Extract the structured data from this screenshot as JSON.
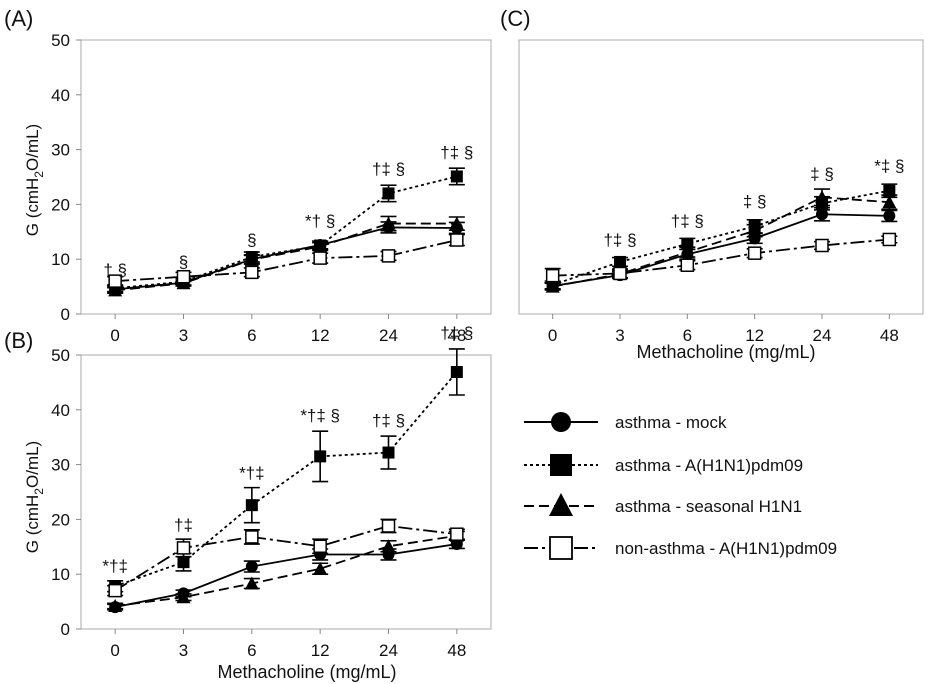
{
  "panels": [
    {
      "id": "A",
      "panel_label": "(A)",
      "ylabel_main": "G (cmH",
      "ylabel_sub": "2",
      "ylabel_tail": "O/mL)",
      "xlabel": "",
      "yticks": [
        "0",
        "10",
        "20",
        "30",
        "40",
        "50"
      ],
      "xticks": [
        "0",
        "3",
        "6",
        "12",
        "24",
        "48"
      ],
      "annotations": [
        {
          "text": "† §",
          "x": "0",
          "y": 7
        },
        {
          "text": "§",
          "x": "3",
          "y": 8.5
        },
        {
          "text": "§",
          "x": "6",
          "y": 12.5
        },
        {
          "text": "*† §",
          "x": "12",
          "y": 16
        },
        {
          "text": "†‡ §",
          "x": "24",
          "y": 25.5
        },
        {
          "text": "†‡ §",
          "x": "48",
          "y": 28.5
        }
      ]
    },
    {
      "id": "B",
      "panel_label": "(B)",
      "ylabel_main": "G (cmH",
      "ylabel_sub": "2",
      "ylabel_tail": "O/mL)",
      "xlabel": "Methacholine (mg/mL)",
      "yticks": [
        "0",
        "10",
        "20",
        "30",
        "40",
        "50"
      ],
      "xticks": [
        "0",
        "3",
        "6",
        "12",
        "24",
        "48"
      ],
      "annotations": [
        {
          "text": "*†‡",
          "x": "0",
          "y": 10.5
        },
        {
          "text": "†‡",
          "x": "3",
          "y": 18
        },
        {
          "text": "*†‡",
          "x": "6",
          "y": 27.5
        },
        {
          "text": "*†‡ §",
          "x": "12",
          "y": 38
        },
        {
          "text": "†‡ §",
          "x": "24",
          "y": 37
        },
        {
          "text": "†‡ §",
          "x": "48",
          "y": 53
        }
      ]
    },
    {
      "id": "C",
      "panel_label": "(C)",
      "ylabel_main": "",
      "ylabel_sub": "",
      "ylabel_tail": "",
      "xlabel": "Methacholine (mg/mL)",
      "yticks": [],
      "xticks": [
        "0",
        "3",
        "6",
        "12",
        "24",
        "48"
      ],
      "annotations": [
        {
          "text": "†‡ §",
          "x": "3",
          "y": 12.5
        },
        {
          "text": "†‡ §",
          "x": "6",
          "y": 16
        },
        {
          "text": "‡ §",
          "x": "12",
          "y": 19.5
        },
        {
          "text": "‡ §",
          "x": "24",
          "y": 24.5
        },
        {
          "text": "*‡ §",
          "x": "48",
          "y": 26
        }
      ]
    }
  ],
  "legend": [
    {
      "key": "asthma_mock",
      "label": "asthma - mock",
      "marker": "circle"
    },
    {
      "key": "asthma_pdm09",
      "label": "asthma - A(H1N1)pdm09",
      "marker": "square-filled"
    },
    {
      "key": "asthma_seasonal",
      "label": "asthma -  seasonal H1N1",
      "marker": "triangle"
    },
    {
      "key": "nonasthma_pdm09",
      "label": "non-asthma - A(H1N1)pdm09",
      "marker": "square-open"
    }
  ],
  "chart_data": [
    {
      "type": "line",
      "panel": "(A)",
      "categories": [
        "0",
        "3",
        "6",
        "12",
        "24",
        "48"
      ],
      "ylabel": "G (cmH2O/mL)",
      "xlabel": "",
      "ylim": [
        0,
        50
      ],
      "series": [
        {
          "name": "asthma - mock",
          "values": [
            4.5,
            5.7,
            10.0,
            12.6,
            15.8,
            15.7
          ],
          "err": [
            0.5,
            0.5,
            0.8,
            0.7,
            1.0,
            1.0
          ]
        },
        {
          "name": "asthma - A(H1N1)pdm09",
          "values": [
            4.7,
            5.9,
            10.4,
            12.5,
            22.0,
            25.1
          ],
          "err": [
            0.6,
            0.6,
            0.9,
            0.8,
            1.5,
            1.5
          ]
        },
        {
          "name": "asthma -  seasonal H1N1",
          "values": [
            4.3,
            5.6,
            9.9,
            12.3,
            16.5,
            16.5
          ],
          "err": [
            0.5,
            0.5,
            0.8,
            0.7,
            1.3,
            1.2
          ]
        },
        {
          "name": "non-asthma - A(H1N1)pdm09",
          "values": [
            6.0,
            6.8,
            7.6,
            10.2,
            10.6,
            13.5
          ],
          "err": [
            0.8,
            0.8,
            0.8,
            0.9,
            0.8,
            1.0
          ]
        }
      ]
    },
    {
      "type": "line",
      "panel": "(B)",
      "categories": [
        "0",
        "3",
        "6",
        "12",
        "24",
        "48"
      ],
      "ylabel": "G (cmH2O/mL)",
      "xlabel": "Methacholine (mg/mL)",
      "ylim": [
        0,
        50
      ],
      "series": [
        {
          "name": "asthma - mock",
          "values": [
            4.0,
            6.5,
            11.4,
            13.6,
            13.6,
            15.5
          ],
          "err": [
            0.5,
            0.6,
            1.0,
            1.0,
            1.0,
            0.8
          ]
        },
        {
          "name": "asthma - A(H1N1)pdm09",
          "values": [
            7.8,
            12.2,
            22.6,
            31.5,
            32.2,
            46.9
          ],
          "err": [
            1.0,
            1.6,
            3.2,
            4.6,
            3.0,
            4.2
          ]
        },
        {
          "name": "asthma -  seasonal H1N1",
          "values": [
            4.2,
            5.8,
            8.3,
            11.0,
            15.1,
            17.0
          ],
          "err": [
            0.5,
            0.6,
            0.9,
            1.0,
            1.0,
            0.8
          ]
        },
        {
          "name": "non-asthma - A(H1N1)pdm09",
          "values": [
            7.0,
            14.8,
            16.8,
            15.1,
            18.8,
            17.3
          ],
          "err": [
            0.9,
            1.6,
            1.3,
            1.3,
            1.2,
            0.9
          ]
        }
      ]
    },
    {
      "type": "line",
      "panel": "(C)",
      "categories": [
        "0",
        "3",
        "6",
        "12",
        "24",
        "48"
      ],
      "ylabel": "",
      "xlabel": "Methacholine (mg/mL)",
      "ylim": [
        0,
        50
      ],
      "series": [
        {
          "name": "asthma - mock",
          "values": [
            5.1,
            7.1,
            10.9,
            13.8,
            18.2,
            17.9
          ],
          "err": [
            0.6,
            0.6,
            0.9,
            0.9,
            1.2,
            1.0
          ]
        },
        {
          "name": "asthma - A(H1N1)pdm09",
          "values": [
            5.3,
            9.5,
            12.8,
            16.0,
            20.2,
            22.5
          ],
          "err": [
            0.7,
            0.8,
            1.0,
            1.2,
            1.2,
            1.2
          ]
        },
        {
          "name": "asthma -  seasonal H1N1",
          "values": [
            5.0,
            7.3,
            11.3,
            15.2,
            21.3,
            20.4
          ],
          "err": [
            0.6,
            0.7,
            0.9,
            1.1,
            1.5,
            1.3
          ]
        },
        {
          "name": "non-asthma - A(H1N1)pdm09",
          "values": [
            7.0,
            7.4,
            8.9,
            11.1,
            12.5,
            13.6
          ],
          "err": [
            1.3,
            0.8,
            0.8,
            0.8,
            0.7,
            0.6
          ]
        }
      ]
    }
  ]
}
